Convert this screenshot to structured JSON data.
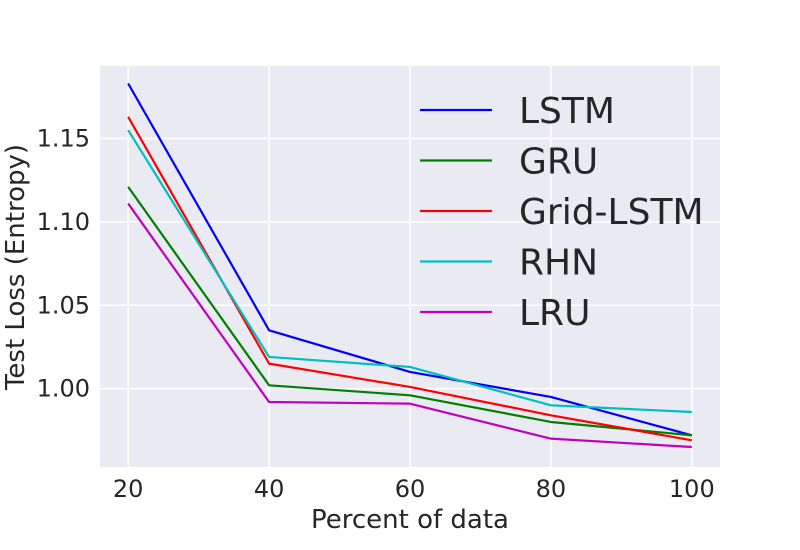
{
  "chart_data": {
    "type": "line",
    "title": "",
    "xlabel": "Percent of data",
    "ylabel": "Test Loss (Entropy)",
    "x": [
      20,
      40,
      60,
      80,
      100
    ],
    "xlim": [
      16,
      104
    ],
    "ylim": [
      0.953,
      1.1935
    ],
    "xticks": [
      20,
      40,
      60,
      80,
      100
    ],
    "xtick_labels": [
      "20",
      "40",
      "60",
      "80",
      "100"
    ],
    "yticks": [
      1.0,
      1.05,
      1.1,
      1.15
    ],
    "ytick_labels": [
      "1.00",
      "1.05",
      "1.10",
      "1.15"
    ],
    "grid": true,
    "legend_position": "top-right",
    "series": [
      {
        "name": "LSTM",
        "color": "#0000ff",
        "values": [
          1.183,
          1.035,
          1.01,
          0.995,
          0.972
        ]
      },
      {
        "name": "GRU",
        "color": "#008000",
        "values": [
          1.121,
          1.002,
          0.996,
          0.98,
          0.972
        ]
      },
      {
        "name": "Grid-LSTM",
        "color": "#ff0000",
        "values": [
          1.163,
          1.015,
          1.001,
          0.984,
          0.969
        ]
      },
      {
        "name": "RHN",
        "color": "#00bfbf",
        "values": [
          1.155,
          1.019,
          1.013,
          0.99,
          0.986
        ]
      },
      {
        "name": "LRU",
        "color": "#bf00bf",
        "values": [
          1.111,
          0.992,
          0.991,
          0.97,
          0.965
        ]
      }
    ],
    "colors": {
      "plot_bg": "#eaeaf2",
      "grid": "#ffffff",
      "text": "#262626"
    }
  }
}
